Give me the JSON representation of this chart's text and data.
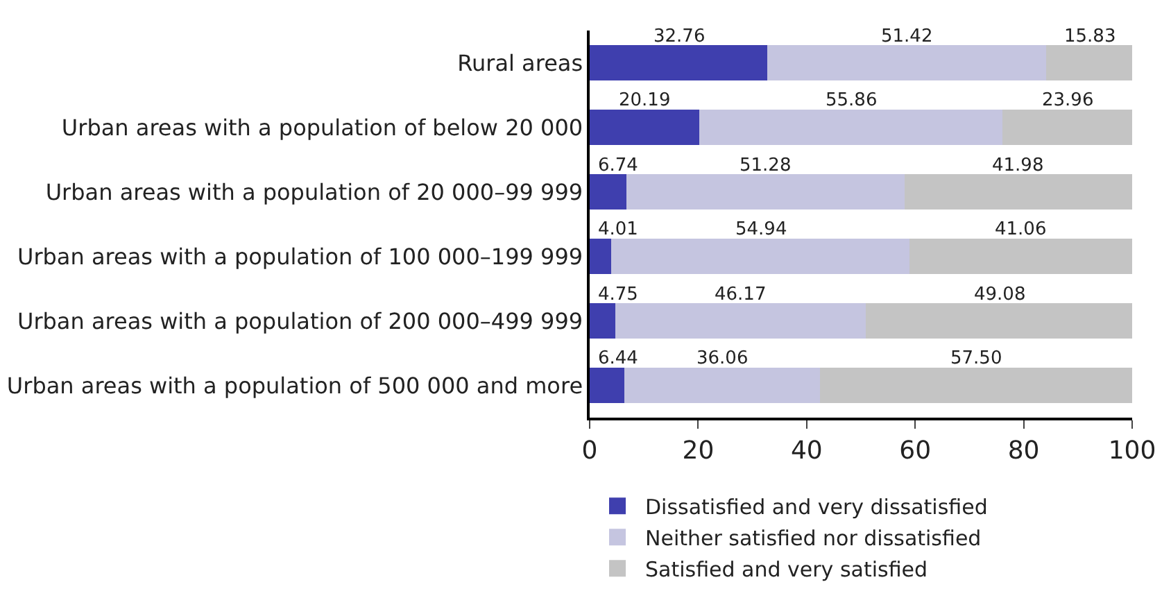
{
  "chart_data": {
    "type": "bar",
    "orientation": "horizontal",
    "stacked": true,
    "categories": [
      "Rural areas",
      "Urban areas with a population of below 20 000",
      "Urban areas with a population of 20 000–99 999",
      "Urban areas with a population of 100 000–199 999",
      "Urban areas with a population of 200 000–499 999",
      "Urban areas with a population of 500 000 and more"
    ],
    "series": [
      {
        "name": "Dissatisfied and very dissatisfied",
        "color": "#3f3fae",
        "values": [
          32.76,
          20.19,
          6.74,
          4.01,
          4.75,
          6.44
        ],
        "value_labels": [
          "32.76",
          "20.19",
          "6.74",
          "4.01",
          "4.75",
          "6.44"
        ]
      },
      {
        "name": "Neither satisfied nor dissatisfied",
        "color": "#c5c5e0",
        "values": [
          51.42,
          55.86,
          51.28,
          54.94,
          46.17,
          36.06
        ],
        "value_labels": [
          "51.42",
          "55.86",
          "51.28",
          "54.94",
          "46.17",
          "36.06"
        ]
      },
      {
        "name": "Satisfied and very satisfied",
        "color": "#c4c4c4",
        "values": [
          15.83,
          23.96,
          41.98,
          41.06,
          49.08,
          57.5
        ],
        "value_labels": [
          "15.83",
          "23.96",
          "41.98",
          "41.06",
          "49.08",
          "57.50"
        ]
      }
    ],
    "xlim": [
      0,
      100
    ],
    "xticks": [
      0,
      20,
      40,
      60,
      80,
      100
    ],
    "grid": false,
    "legend": "bottom"
  }
}
